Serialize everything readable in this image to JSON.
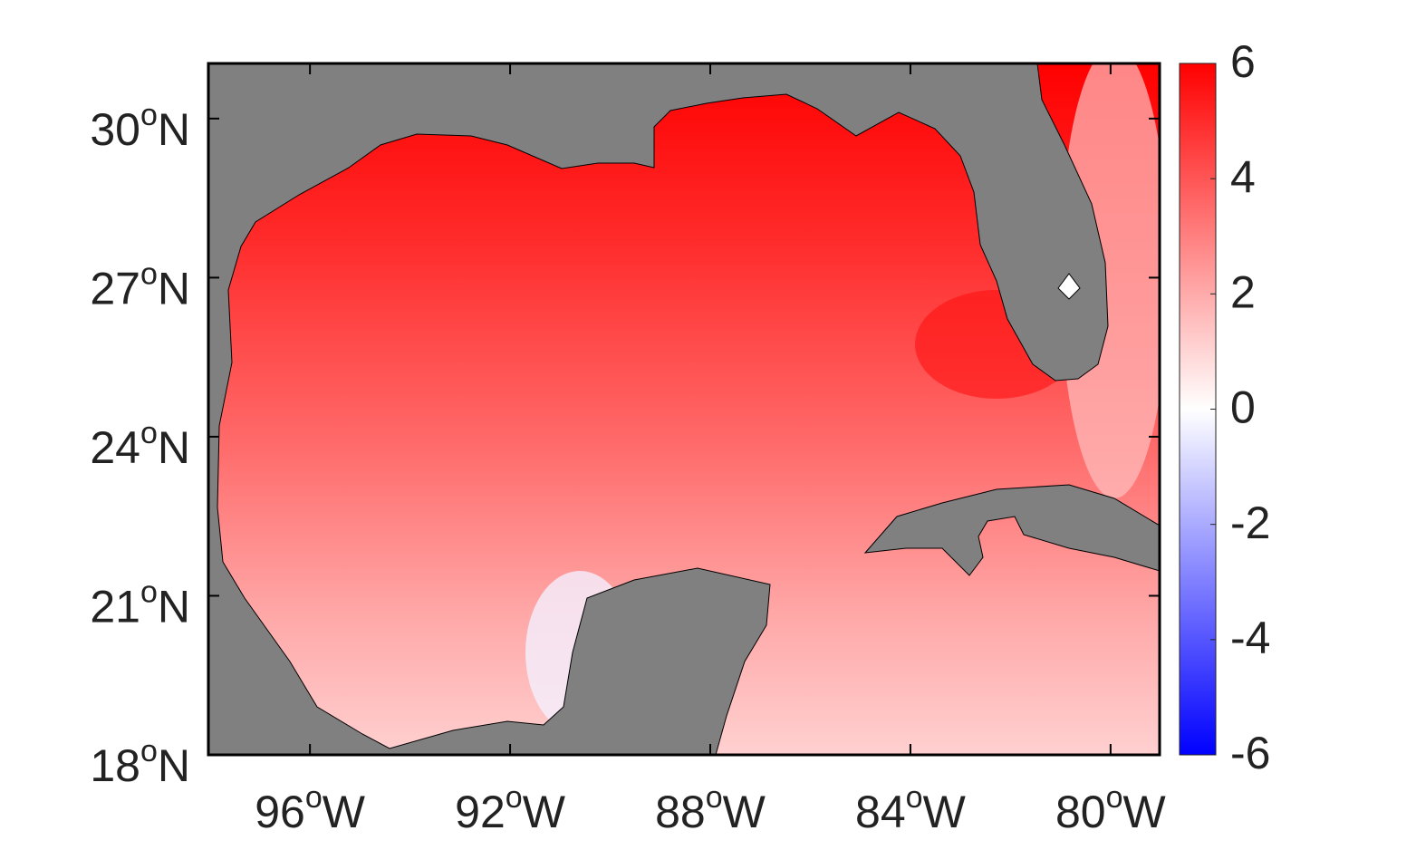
{
  "map": {
    "ylim": [
      18,
      31.04
    ],
    "yticks": [
      {
        "value": 18,
        "label": "18",
        "degree": "o",
        "hemisphere": "N"
      },
      {
        "value": 21,
        "label": "21",
        "degree": "o",
        "hemisphere": "N"
      },
      {
        "value": 24,
        "label": "24",
        "degree": "o",
        "hemisphere": "N"
      },
      {
        "value": 27,
        "label": "27",
        "degree": "o",
        "hemisphere": "N"
      },
      {
        "value": 30,
        "label": "30",
        "degree": "o",
        "hemisphere": "N"
      }
    ],
    "xlim": [
      -98.03,
      -79.02
    ],
    "xticks": [
      {
        "value": -96,
        "label": "96",
        "degree": "o",
        "hemisphere": "W"
      },
      {
        "value": -92,
        "label": "92",
        "degree": "o",
        "hemisphere": "W"
      },
      {
        "value": -88,
        "label": "88",
        "degree": "o",
        "hemisphere": "W"
      },
      {
        "value": -84,
        "label": "84",
        "degree": "o",
        "hemisphere": "W"
      },
      {
        "value": -80,
        "label": "80",
        "degree": "o",
        "hemisphere": "W"
      }
    ],
    "colorbar": {
      "lim": [
        -6,
        6
      ],
      "ticks": [
        -6,
        -4,
        -2,
        0,
        2,
        4,
        6
      ],
      "colormap": [
        "#0000ff",
        "#ffffff",
        "#ff0000"
      ]
    }
  }
}
